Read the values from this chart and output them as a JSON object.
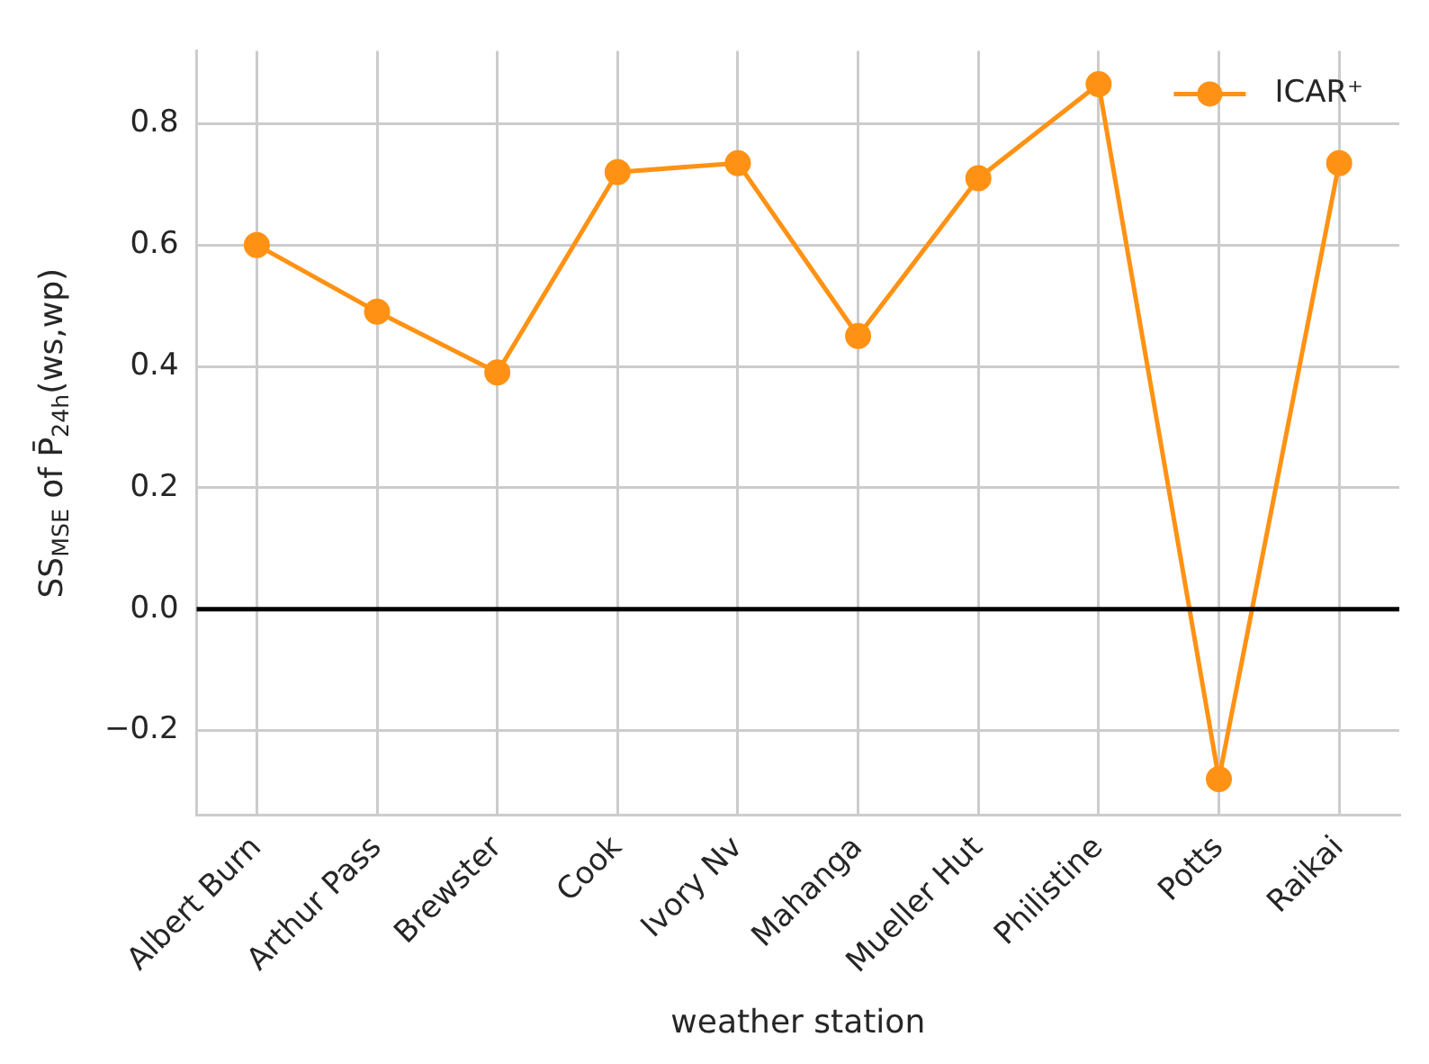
{
  "chart_data": {
    "type": "line",
    "xlabel": "weather station",
    "ylabel": "SS$_{MSE}$ of P̄$_{24h}$(ws,wp)",
    "categories": [
      "Albert Burn",
      "Arthur Pass",
      "Brewster",
      "Cook",
      "Ivory Nv",
      "Mahanga",
      "Mueller Hut",
      "Philistine",
      "Potts",
      "Raikai"
    ],
    "series": [
      {
        "name": "ICAR⁺",
        "color": "#ff9214",
        "values": [
          0.6,
          0.49,
          0.39,
          0.72,
          0.735,
          0.45,
          0.71,
          0.865,
          -0.28,
          0.735
        ]
      }
    ],
    "ylim": [
      -0.34,
      0.92
    ],
    "yticks": [
      {
        "value": -0.2,
        "label": "−0.2"
      },
      {
        "value": 0,
        "label": "0.0"
      },
      {
        "value": 0.2,
        "label": "0.2"
      },
      {
        "value": 0.4,
        "label": "0.4"
      },
      {
        "value": 0.6,
        "label": "0.6"
      },
      {
        "value": 0.8,
        "label": "0.8"
      }
    ],
    "ref_lines": [
      {
        "axis": "y",
        "value": 0,
        "color": "#000000"
      }
    ],
    "grid": true,
    "legend": "top right",
    "marker": "circle",
    "line_style": "solid"
  }
}
